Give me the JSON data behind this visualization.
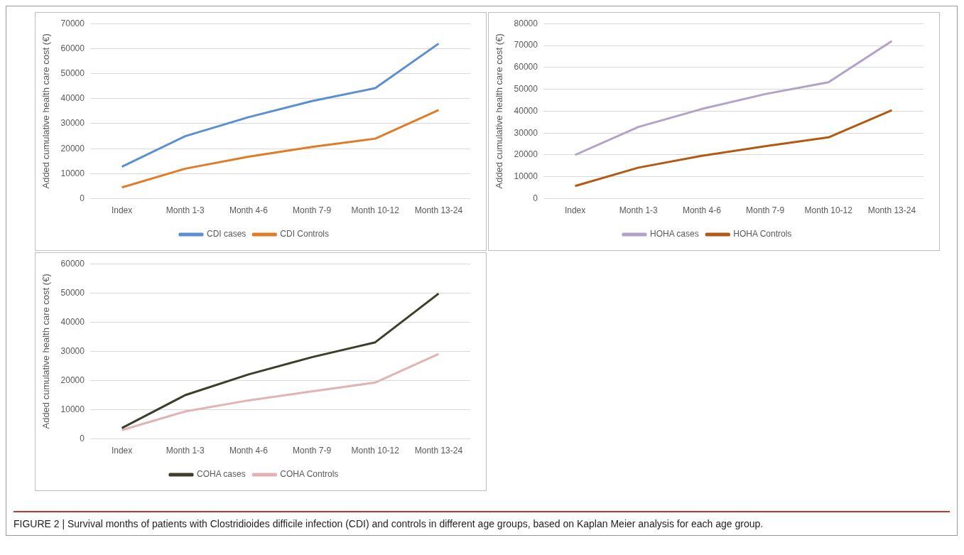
{
  "chart_data": [
    {
      "type": "line",
      "ylabel": "Added cumulative health care cost (€)",
      "categories": [
        "Index",
        "Month 1-3",
        "Month 4-6",
        "Month 7-9",
        "Month 10-12",
        "Month 13-24"
      ],
      "ylim": [
        0,
        70000
      ],
      "yticks": [
        0,
        10000,
        20000,
        30000,
        40000,
        50000,
        60000,
        70000
      ],
      "grid": "y",
      "legend": "bottom",
      "marker": "none",
      "line_style": "solid",
      "series": [
        {
          "name": "CDI cases",
          "color": "#5b8fd1",
          "values": [
            12800,
            25000,
            32600,
            39000,
            44200,
            62000
          ]
        },
        {
          "name": "CDI Controls",
          "color": "#e07b28",
          "values": [
            4500,
            12000,
            16800,
            20700,
            24000,
            35400
          ]
        }
      ]
    },
    {
      "type": "line",
      "ylabel": "Added cumulative health care cost (€)",
      "categories": [
        "Index",
        "Month 1-3",
        "Month 4-6",
        "Month 7-9",
        "Month 10-12",
        "Month 13-24"
      ],
      "ylim": [
        0,
        80000
      ],
      "yticks": [
        0,
        10000,
        20000,
        30000,
        40000,
        50000,
        60000,
        70000,
        80000
      ],
      "grid": "y",
      "legend": "bottom",
      "marker": "none",
      "line_style": "solid",
      "series": [
        {
          "name": "HOHA cases",
          "color": "#b3a2c7",
          "values": [
            20000,
            32800,
            41000,
            47800,
            53200,
            72000
          ]
        },
        {
          "name": "HOHA Controls",
          "color": "#b35a12",
          "values": [
            5800,
            14200,
            19600,
            24000,
            28000,
            40400
          ]
        }
      ]
    },
    {
      "type": "line",
      "ylabel": "Added cumulative health care cost (€)",
      "categories": [
        "Index",
        "Month 1-3",
        "Month 4-6",
        "Month 7-9",
        "Month 10-12",
        "Month 13-24"
      ],
      "ylim": [
        0,
        60000
      ],
      "yticks": [
        0,
        10000,
        20000,
        30000,
        40000,
        50000,
        60000
      ],
      "grid": "y",
      "legend": "bottom",
      "marker": "none",
      "line_style": "solid",
      "annotations": [
        "FIGURE 2 | Survival months of patients with Clostridioides difficile infection (CDI) and controls in different age groups, based on Kaplan Meier analysis for each age group."
      ],
      "series": [
        {
          "name": "COHA cases",
          "color": "#3d3d2a",
          "values": [
            3700,
            15000,
            22100,
            28000,
            33100,
            49800
          ]
        },
        {
          "name": "COHA Controls",
          "color": "#e0b4b4",
          "values": [
            3000,
            9400,
            13200,
            16300,
            19300,
            29100
          ]
        }
      ]
    }
  ]
}
